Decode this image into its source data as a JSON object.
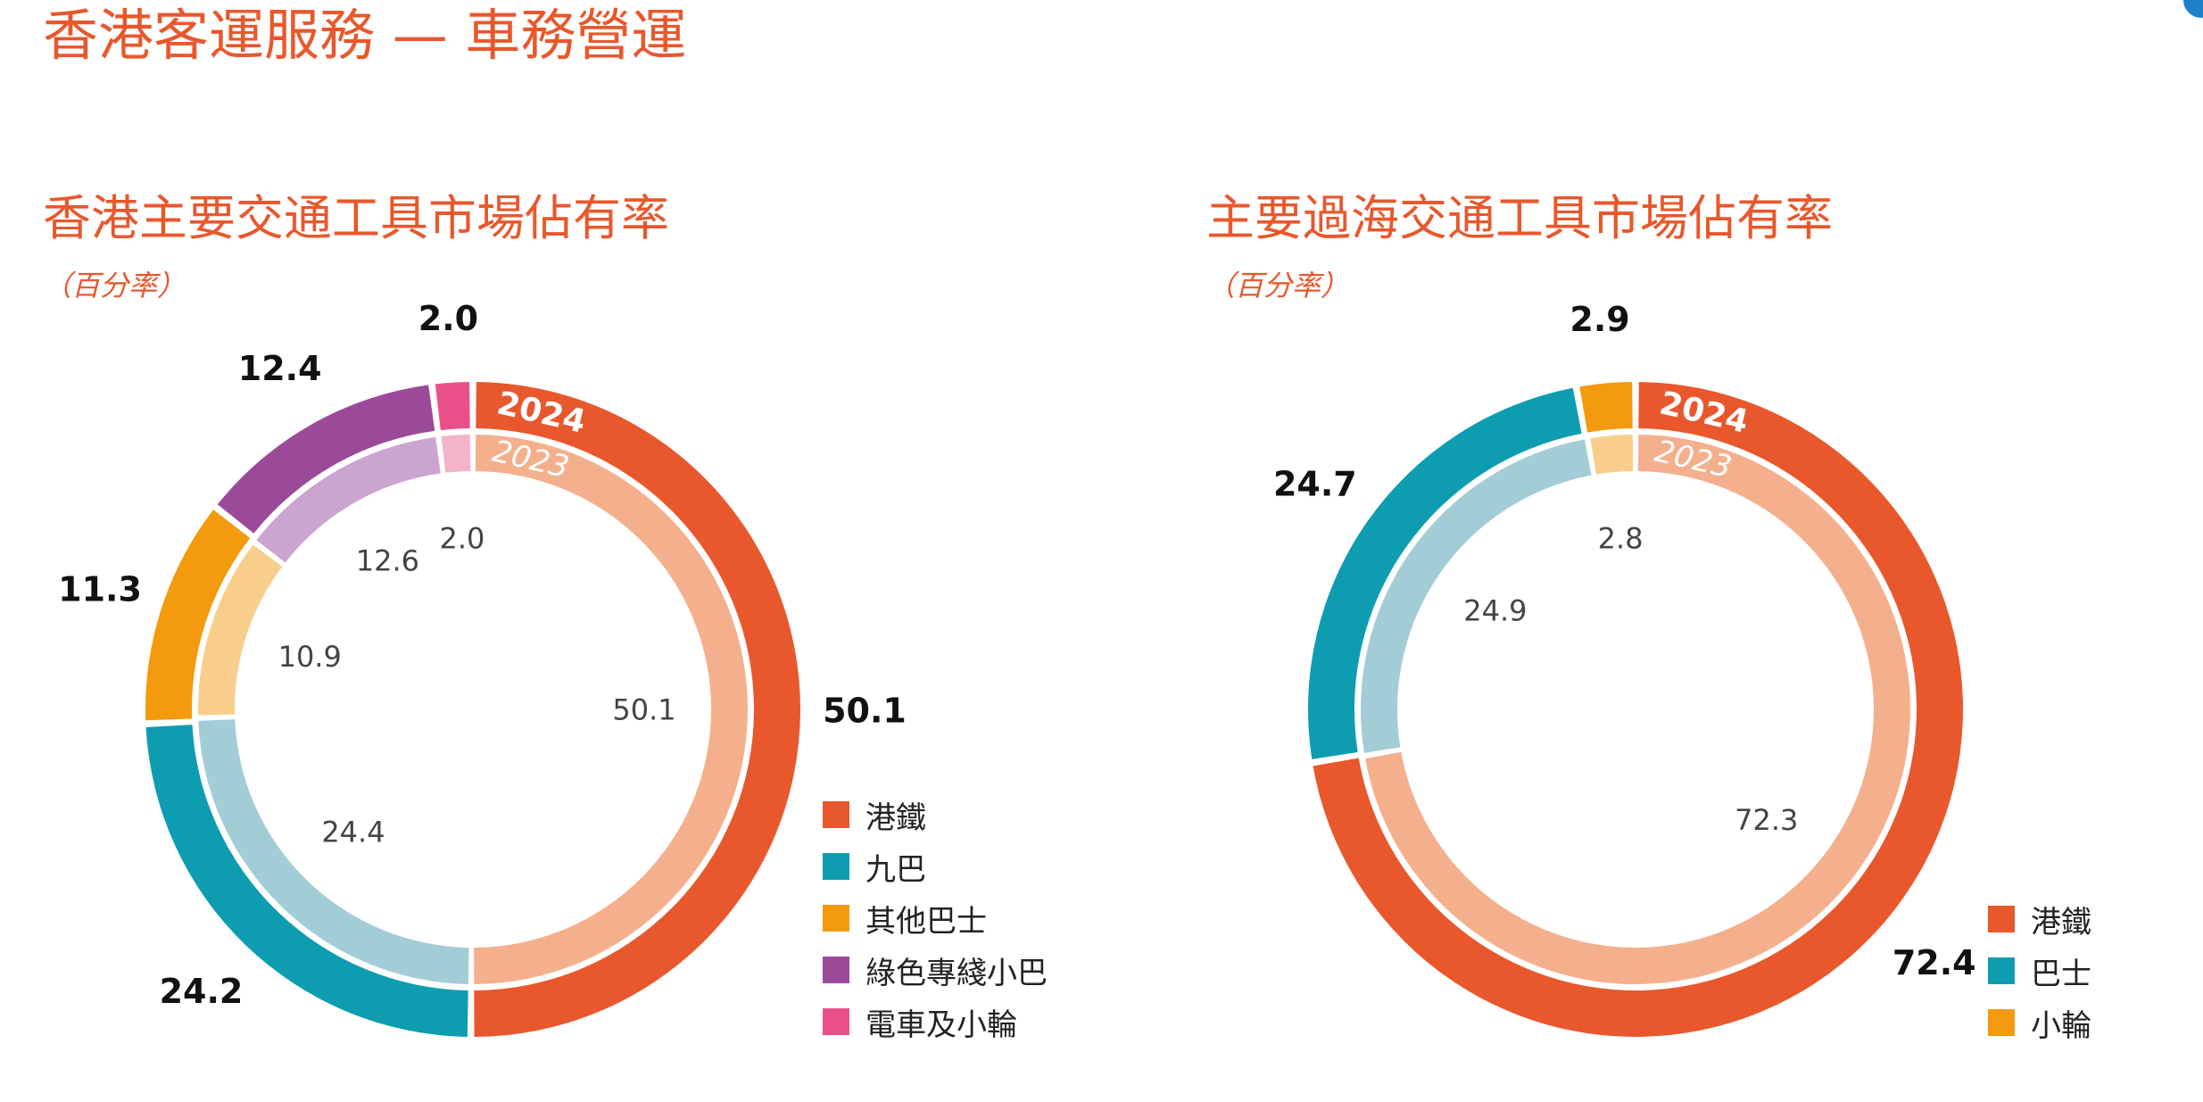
{
  "page": {
    "title": "香港客運服務 — 車務營運"
  },
  "chart_data": [
    {
      "type": "pie",
      "subtype": "double-donut",
      "title": "香港主要交通工具市場佔有率",
      "subtitle": "（百分率）",
      "ring_labels": {
        "outer": "2024",
        "inner": "2023"
      },
      "categories": [
        "港鐵",
        "九巴",
        "其他巴士",
        "綠色專綫小巴",
        "電車及小輪"
      ],
      "series": [
        {
          "name": "2024",
          "values": [
            50.1,
            24.2,
            11.3,
            12.4,
            2.0
          ]
        },
        {
          "name": "2023",
          "values": [
            50.1,
            24.4,
            10.9,
            12.6,
            2.0
          ]
        }
      ],
      "colors_outer": [
        "#E8582C",
        "#0E9DB0",
        "#F39A0E",
        "#9B4A9A",
        "#E9508A"
      ],
      "colors_inner": [
        "#F4B08D",
        "#A3CDD6",
        "#F9CE8C",
        "#CBA4CF",
        "#F4B3C9"
      ],
      "legend_position": "bottom-right"
    },
    {
      "type": "pie",
      "subtype": "double-donut",
      "title": "主要過海交通工具市場佔有率",
      "subtitle": "（百分率）",
      "ring_labels": {
        "outer": "2024",
        "inner": "2023"
      },
      "categories": [
        "港鐵",
        "巴士",
        "小輪"
      ],
      "series": [
        {
          "name": "2024",
          "values": [
            72.4,
            24.7,
            2.9
          ]
        },
        {
          "name": "2023",
          "values": [
            72.3,
            24.9,
            2.8
          ]
        }
      ],
      "colors_outer": [
        "#E8582C",
        "#0E9DB0",
        "#F39A0E"
      ],
      "colors_inner": [
        "#F4B08D",
        "#A3CDD6",
        "#F9CE8C"
      ],
      "legend_position": "bottom-right"
    }
  ]
}
